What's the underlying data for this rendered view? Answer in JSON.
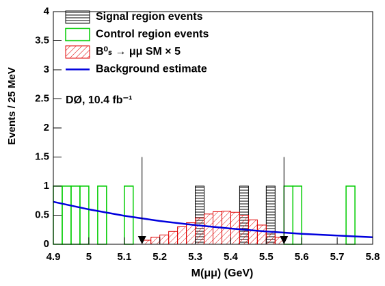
{
  "chart_data": {
    "type": "histogram",
    "x_label": "M(μμ) (GeV)",
    "y_label": "Events / 25 MeV",
    "annotation": "DØ, 10.4 fb⁻¹",
    "xlim": [
      4.9,
      5.8
    ],
    "ylim": [
      0,
      4
    ],
    "xticks": [
      4.9,
      5,
      5.1,
      5.2,
      5.3,
      5.4,
      5.5,
      5.6,
      5.7,
      5.8
    ],
    "yticks": [
      0,
      0.5,
      1,
      1.5,
      2,
      2.5,
      3,
      3.5,
      4
    ],
    "window": {
      "x": [
        5.15,
        5.55
      ],
      "top": 1.5
    },
    "series": [
      {
        "name": "Signal region events",
        "color": "#000000",
        "style": "hatch-h",
        "bins": [
          5.3,
          5.325,
          5.35,
          5.375,
          5.4,
          5.425,
          5.45,
          5.475,
          5.5,
          5.525,
          5.55
        ],
        "values": [
          1,
          0,
          0,
          0,
          0,
          1,
          0,
          0,
          1,
          0
        ]
      },
      {
        "name": "Control region events",
        "color": "#00cc00",
        "style": "outline",
        "bins": [
          4.9,
          4.925,
          4.95,
          4.975,
          5.0,
          5.025,
          5.05,
          5.075,
          5.1,
          5.125,
          5.15,
          5.175,
          5.2,
          5.225,
          5.25,
          5.275,
          5.3,
          5.325,
          5.35,
          5.375,
          5.4,
          5.425,
          5.45,
          5.475,
          5.5,
          5.525,
          5.55,
          5.575,
          5.6,
          5.625,
          5.65,
          5.675,
          5.7,
          5.725,
          5.75,
          5.775,
          5.8
        ],
        "values": [
          1,
          1,
          1,
          1,
          0,
          1,
          0,
          0,
          1,
          0,
          0,
          0,
          0,
          0,
          0,
          0,
          0,
          0,
          0,
          0,
          0,
          0,
          0,
          0,
          0,
          0,
          1,
          1,
          0,
          0,
          0,
          0,
          0,
          1,
          0,
          0
        ]
      },
      {
        "name": "B⁰ₛ → μμ SM × 5",
        "color": "#e00000",
        "style": "hatch-d",
        "bins": [
          5.15,
          5.175,
          5.2,
          5.225,
          5.25,
          5.275,
          5.3,
          5.325,
          5.35,
          5.375,
          5.4,
          5.425,
          5.45,
          5.475,
          5.5,
          5.525,
          5.55
        ],
        "values": [
          0.07,
          0.12,
          0.16,
          0.22,
          0.3,
          0.37,
          0.45,
          0.52,
          0.56,
          0.57,
          0.55,
          0.5,
          0.42,
          0.33,
          0.22,
          0.12
        ]
      },
      {
        "name": "Background estimate",
        "color": "#0000dd",
        "style": "line",
        "x": [
          4.9,
          5.0,
          5.1,
          5.2,
          5.3,
          5.4,
          5.5,
          5.6,
          5.7,
          5.8
        ],
        "values": [
          0.73,
          0.6,
          0.49,
          0.4,
          0.33,
          0.27,
          0.22,
          0.18,
          0.15,
          0.12
        ]
      }
    ]
  }
}
